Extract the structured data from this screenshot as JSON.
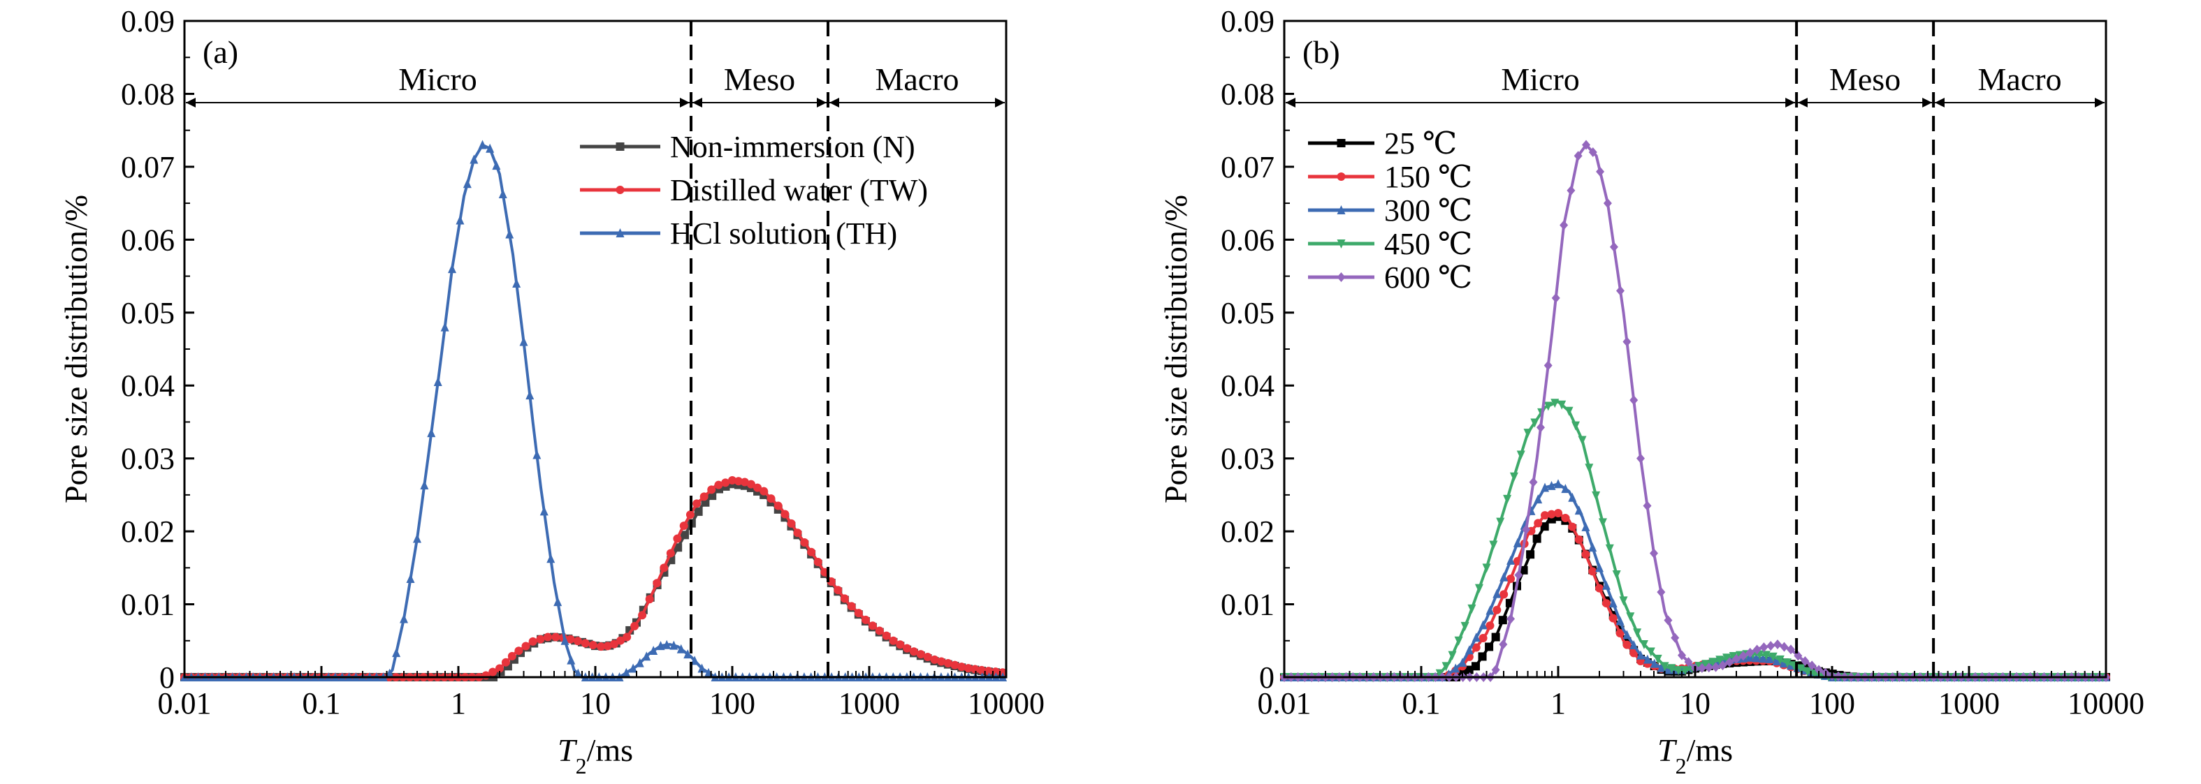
{
  "chart_data": [
    {
      "type": "line",
      "panel_label": "(a)",
      "xlabel_main": "T",
      "xlabel_sub": "2",
      "xlabel_unit": "/ms",
      "ylabel": "Pore size distribution/%",
      "x_scale": "log",
      "xlim": [
        0.01,
        10000
      ],
      "ylim": [
        0,
        0.09
      ],
      "x_ticks": [
        0.01,
        0.1,
        1,
        10,
        100,
        1000,
        10000
      ],
      "x_tick_labels": [
        "0.01",
        "0.1",
        "1",
        "10",
        "100",
        "1000",
        "10000"
      ],
      "y_ticks": [
        0,
        0.01,
        0.02,
        0.03,
        0.04,
        0.05,
        0.06,
        0.07,
        0.08,
        0.09
      ],
      "y_tick_labels": [
        "0",
        "0.01",
        "0.02",
        "0.03",
        "0.04",
        "0.05",
        "0.06",
        "0.07",
        "0.08",
        "0.09"
      ],
      "boundaries": [
        50,
        500
      ],
      "regions": [
        {
          "label": "Micro",
          "from": 0.01,
          "to": 50
        },
        {
          "label": "Meso",
          "from": 50,
          "to": 500
        },
        {
          "label": "Macro",
          "from": 500,
          "to": 10000
        }
      ],
      "region_arrow_y": 0.0788,
      "legend_position": "top-right",
      "series": [
        {
          "name": "Non-immersion (N)",
          "color": "#444444",
          "marker": "square",
          "points": [
            [
              0.01,
              0
            ],
            [
              1.8,
              0
            ],
            [
              2.3,
              0.0015
            ],
            [
              3,
              0.0038
            ],
            [
              4,
              0.0052
            ],
            [
              5,
              0.0055
            ],
            [
              6,
              0.0054
            ],
            [
              8,
              0.0048
            ],
            [
              10,
              0.0043
            ],
            [
              12,
              0.0042
            ],
            [
              15,
              0.0048
            ],
            [
              20,
              0.0075
            ],
            [
              30,
              0.0135
            ],
            [
              45,
              0.0195
            ],
            [
              60,
              0.0235
            ],
            [
              80,
              0.0258
            ],
            [
              100,
              0.0265
            ],
            [
              130,
              0.0262
            ],
            [
              170,
              0.025
            ],
            [
              230,
              0.0225
            ],
            [
              300,
              0.0195
            ],
            [
              400,
              0.0162
            ],
            [
              500,
              0.0135
            ],
            [
              700,
              0.01
            ],
            [
              1000,
              0.0072
            ],
            [
              1500,
              0.0048
            ],
            [
              2000,
              0.0035
            ],
            [
              3000,
              0.0022
            ],
            [
              5000,
              0.0012
            ],
            [
              7000,
              0.0008
            ],
            [
              10000,
              0.0005
            ]
          ]
        },
        {
          "name": "Distilled water (TW)",
          "color": "#e8343c",
          "marker": "circle",
          "points": [
            [
              0.01,
              0
            ],
            [
              0.35,
              0
            ],
            [
              1.5,
              0
            ],
            [
              2,
              0.0012
            ],
            [
              2.6,
              0.0033
            ],
            [
              3.5,
              0.0049
            ],
            [
              4.5,
              0.0055
            ],
            [
              5.5,
              0.0055
            ],
            [
              7,
              0.0051
            ],
            [
              9,
              0.0045
            ],
            [
              11,
              0.0042
            ],
            [
              13,
              0.0043
            ],
            [
              17,
              0.0055
            ],
            [
              22,
              0.0085
            ],
            [
              30,
              0.014
            ],
            [
              42,
              0.02
            ],
            [
              55,
              0.0238
            ],
            [
              75,
              0.0262
            ],
            [
              100,
              0.027
            ],
            [
              130,
              0.0267
            ],
            [
              170,
              0.0255
            ],
            [
              230,
              0.023
            ],
            [
              300,
              0.0198
            ],
            [
              400,
              0.0165
            ],
            [
              500,
              0.0137
            ],
            [
              700,
              0.0102
            ],
            [
              1000,
              0.0074
            ],
            [
              1500,
              0.005
            ],
            [
              2000,
              0.0037
            ],
            [
              3000,
              0.0024
            ],
            [
              5000,
              0.0013
            ],
            [
              7000,
              0.0009
            ],
            [
              10000,
              0.0006
            ]
          ]
        },
        {
          "name": "HCl solution (TH)",
          "color": "#3d6bb3",
          "marker": "triangle",
          "points": [
            [
              0.01,
              0
            ],
            [
              0.3,
              0
            ],
            [
              0.33,
              0.001
            ],
            [
              0.4,
              0.008
            ],
            [
              0.5,
              0.019
            ],
            [
              0.6,
              0.03
            ],
            [
              0.75,
              0.044
            ],
            [
              0.9,
              0.056
            ],
            [
              1.1,
              0.066
            ],
            [
              1.3,
              0.071
            ],
            [
              1.5,
              0.073
            ],
            [
              1.7,
              0.0725
            ],
            [
              2,
              0.069
            ],
            [
              2.5,
              0.058
            ],
            [
              3,
              0.046
            ],
            [
              3.5,
              0.035
            ],
            [
              4,
              0.026
            ],
            [
              5,
              0.013
            ],
            [
              6,
              0.005
            ],
            [
              7,
              0.001
            ],
            [
              8,
              0
            ],
            [
              15,
              0
            ],
            [
              20,
              0.0015
            ],
            [
              25,
              0.0033
            ],
            [
              30,
              0.0043
            ],
            [
              35,
              0.0045
            ],
            [
              40,
              0.0042
            ],
            [
              50,
              0.0028
            ],
            [
              60,
              0.0012
            ],
            [
              75,
              0
            ],
            [
              10000,
              0
            ]
          ]
        }
      ]
    },
    {
      "type": "line",
      "panel_label": "(b)",
      "xlabel_main": "T",
      "xlabel_sub": "2",
      "xlabel_unit": "/ms",
      "ylabel": "Pore size distribution/%",
      "x_scale": "log",
      "xlim": [
        0.01,
        10000
      ],
      "ylim": [
        0,
        0.09
      ],
      "x_ticks": [
        0.01,
        0.1,
        1,
        10,
        100,
        1000,
        10000
      ],
      "x_tick_labels": [
        "0.01",
        "0.1",
        "1",
        "10",
        "100",
        "1000",
        "10000"
      ],
      "y_ticks": [
        0,
        0.01,
        0.02,
        0.03,
        0.04,
        0.05,
        0.06,
        0.07,
        0.08,
        0.09
      ],
      "y_tick_labels": [
        "0",
        "0.01",
        "0.02",
        "0.03",
        "0.04",
        "0.05",
        "0.06",
        "0.07",
        "0.08",
        "0.09"
      ],
      "boundaries": [
        55,
        550
      ],
      "regions": [
        {
          "label": "Micro",
          "from": 0.01,
          "to": 55
        },
        {
          "label": "Meso",
          "from": 55,
          "to": 550
        },
        {
          "label": "Macro",
          "from": 550,
          "to": 10000
        }
      ],
      "region_arrow_y": 0.0788,
      "legend_position": "top-left",
      "series": [
        {
          "name": "25 ℃",
          "color": "#000000",
          "marker": "square",
          "points": [
            [
              0.01,
              0
            ],
            [
              0.18,
              0
            ],
            [
              0.25,
              0.0015
            ],
            [
              0.35,
              0.0055
            ],
            [
              0.5,
              0.0125
            ],
            [
              0.7,
              0.019
            ],
            [
              0.85,
              0.0215
            ],
            [
              1,
              0.022
            ],
            [
              1.2,
              0.0212
            ],
            [
              1.5,
              0.018
            ],
            [
              2,
              0.0125
            ],
            [
              3,
              0.0055
            ],
            [
              4,
              0.0025
            ],
            [
              6,
              0.0008
            ],
            [
              8,
              0.0008
            ],
            [
              10,
              0.0012
            ],
            [
              15,
              0.0018
            ],
            [
              20,
              0.002
            ],
            [
              30,
              0.0022
            ],
            [
              40,
              0.0022
            ],
            [
              60,
              0.0015
            ],
            [
              80,
              0.0008
            ],
            [
              120,
              0.0002
            ],
            [
              150,
              0
            ],
            [
              10000,
              0
            ]
          ]
        },
        {
          "name": "150 ℃",
          "color": "#e8343c",
          "marker": "circle",
          "points": [
            [
              0.01,
              0
            ],
            [
              0.15,
              0
            ],
            [
              0.2,
              0.0015
            ],
            [
              0.3,
              0.006
            ],
            [
              0.45,
              0.0135
            ],
            [
              0.6,
              0.0195
            ],
            [
              0.8,
              0.0222
            ],
            [
              1,
              0.0225
            ],
            [
              1.2,
              0.0215
            ],
            [
              1.5,
              0.018
            ],
            [
              2,
              0.0122
            ],
            [
              3,
              0.005
            ],
            [
              4,
              0.0022
            ],
            [
              6,
              0.001
            ],
            [
              8,
              0.0012
            ],
            [
              12,
              0.0018
            ],
            [
              18,
              0.0022
            ],
            [
              25,
              0.0023
            ],
            [
              35,
              0.0022
            ],
            [
              50,
              0.0014
            ],
            [
              70,
              0.0006
            ],
            [
              100,
              0
            ],
            [
              10000,
              0
            ]
          ]
        },
        {
          "name": "300 ℃",
          "color": "#3d6bb3",
          "marker": "triangle",
          "points": [
            [
              0.01,
              0
            ],
            [
              0.15,
              0
            ],
            [
              0.2,
              0.002
            ],
            [
              0.3,
              0.008
            ],
            [
              0.45,
              0.016
            ],
            [
              0.6,
              0.022
            ],
            [
              0.8,
              0.026
            ],
            [
              1,
              0.0265
            ],
            [
              1.2,
              0.0255
            ],
            [
              1.5,
              0.022
            ],
            [
              2,
              0.015
            ],
            [
              3,
              0.0065
            ],
            [
              4,
              0.003
            ],
            [
              6,
              0.001
            ],
            [
              8,
              0.001
            ],
            [
              12,
              0.0018
            ],
            [
              18,
              0.0024
            ],
            [
              25,
              0.0027
            ],
            [
              35,
              0.0025
            ],
            [
              50,
              0.0016
            ],
            [
              70,
              0.0006
            ],
            [
              100,
              0
            ],
            [
              10000,
              0
            ]
          ]
        },
        {
          "name": "450 ℃",
          "color": "#3daa6a",
          "marker": "triangle-down",
          "points": [
            [
              0.01,
              0
            ],
            [
              0.13,
              0
            ],
            [
              0.16,
              0.002
            ],
            [
              0.22,
              0.008
            ],
            [
              0.3,
              0.015
            ],
            [
              0.45,
              0.026
            ],
            [
              0.6,
              0.0335
            ],
            [
              0.8,
              0.037
            ],
            [
              1,
              0.0378
            ],
            [
              1.2,
              0.0365
            ],
            [
              1.5,
              0.0325
            ],
            [
              2,
              0.023
            ],
            [
              3,
              0.0105
            ],
            [
              4,
              0.005
            ],
            [
              6,
              0.0015
            ],
            [
              8,
              0.0008
            ],
            [
              12,
              0.0018
            ],
            [
              18,
              0.0028
            ],
            [
              25,
              0.0032
            ],
            [
              35,
              0.003
            ],
            [
              50,
              0.0018
            ],
            [
              70,
              0.0006
            ],
            [
              100,
              0
            ],
            [
              10000,
              0
            ]
          ]
        },
        {
          "name": "600 ℃",
          "color": "#9467bd",
          "marker": "diamond",
          "points": [
            [
              0.01,
              0
            ],
            [
              0.32,
              0
            ],
            [
              0.35,
              0.001
            ],
            [
              0.45,
              0.008
            ],
            [
              0.55,
              0.017
            ],
            [
              0.7,
              0.03
            ],
            [
              0.9,
              0.047
            ],
            [
              1.1,
              0.062
            ],
            [
              1.4,
              0.0715
            ],
            [
              1.6,
              0.073
            ],
            [
              1.9,
              0.0715
            ],
            [
              2.3,
              0.065
            ],
            [
              3,
              0.05
            ],
            [
              4,
              0.03
            ],
            [
              5,
              0.017
            ],
            [
              6,
              0.009
            ],
            [
              8,
              0.003
            ],
            [
              10,
              0.0012
            ],
            [
              15,
              0.0014
            ],
            [
              20,
              0.0025
            ],
            [
              30,
              0.004
            ],
            [
              40,
              0.0045
            ],
            [
              50,
              0.0038
            ],
            [
              60,
              0.0025
            ],
            [
              80,
              0.001
            ],
            [
              100,
              0.0002
            ],
            [
              130,
              0
            ],
            [
              10000,
              0
            ]
          ]
        }
      ]
    }
  ]
}
